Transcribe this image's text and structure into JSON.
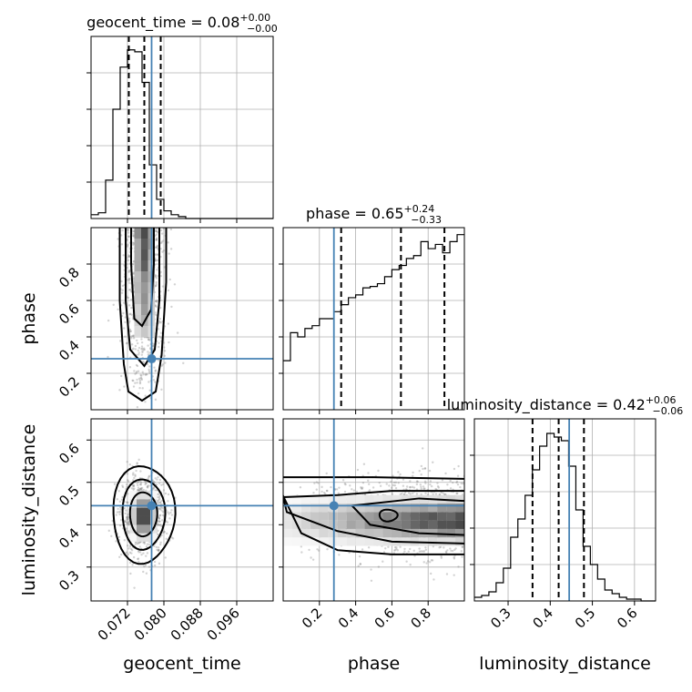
{
  "chart_data": {
    "type": "corner",
    "parameters": [
      {
        "key": "geocent_time",
        "label": "geocent_time",
        "range": [
          0.064,
          0.104
        ],
        "ticks": [
          0.072,
          0.08,
          0.088,
          0.096
        ],
        "tick_labels": [
          "0.072",
          "0.080",
          "0.088",
          "0.096"
        ]
      },
      {
        "key": "phase",
        "label": "phase",
        "range": [
          0.0,
          1.0
        ],
        "ticks": [
          0.2,
          0.4,
          0.6,
          0.8
        ],
        "tick_labels": [
          "0.2",
          "0.4",
          "0.6",
          "0.8"
        ]
      },
      {
        "key": "luminosity_distance",
        "label": "luminosity_distance",
        "range": [
          0.22,
          0.65
        ],
        "ticks": [
          0.3,
          0.4,
          0.5,
          0.6
        ],
        "tick_labels": [
          "0.3",
          "0.4",
          "0.5",
          "0.6"
        ]
      }
    ],
    "titles": [
      {
        "main": "geocent_time = 0.08",
        "sup": "+0.00",
        "sub": "−0.00"
      },
      {
        "main": "phase = 0.65",
        "sup": "+0.24",
        "sub": "−0.33"
      },
      {
        "main": "luminosity_distance = 0.42",
        "sup": "+0.06",
        "sub": "−0.06"
      }
    ],
    "truths": [
      0.0773,
      0.28,
      0.445
    ],
    "quantiles": [
      [
        0.0723,
        0.0757,
        0.0793
      ],
      [
        0.32,
        0.65,
        0.89
      ],
      [
        0.358,
        0.42,
        0.48
      ]
    ],
    "histograms": [
      {
        "edges_start": 0.064,
        "bin_width": 0.0016,
        "counts": [
          2,
          3,
          20,
          57,
          79,
          88,
          87,
          71,
          28,
          10,
          4,
          2,
          1,
          0,
          0,
          0,
          0,
          0,
          0,
          0,
          0,
          0,
          0,
          0,
          0
        ],
        "ymax": 95
      },
      {
        "edges_start": 0.0,
        "bin_width": 0.04,
        "counts": [
          35,
          55,
          52,
          58,
          60,
          65,
          65,
          70,
          75,
          80,
          82,
          87,
          88,
          90,
          95,
          100,
          103,
          108,
          110,
          120,
          115,
          118,
          112,
          120,
          125
        ],
        "ymax": 130
      },
      {
        "edges_start": 0.22,
        "bin_width": 0.0172,
        "counts": [
          2,
          3,
          5,
          10,
          18,
          35,
          45,
          58,
          72,
          85,
          92,
          90,
          88,
          74,
          50,
          30,
          20,
          12,
          6,
          4,
          2,
          1,
          1,
          0,
          0
        ],
        "ymax": 100
      }
    ],
    "grid": true,
    "color_truth": "#4682b4",
    "color_contour": "#000000",
    "color_samples": "#808080"
  }
}
